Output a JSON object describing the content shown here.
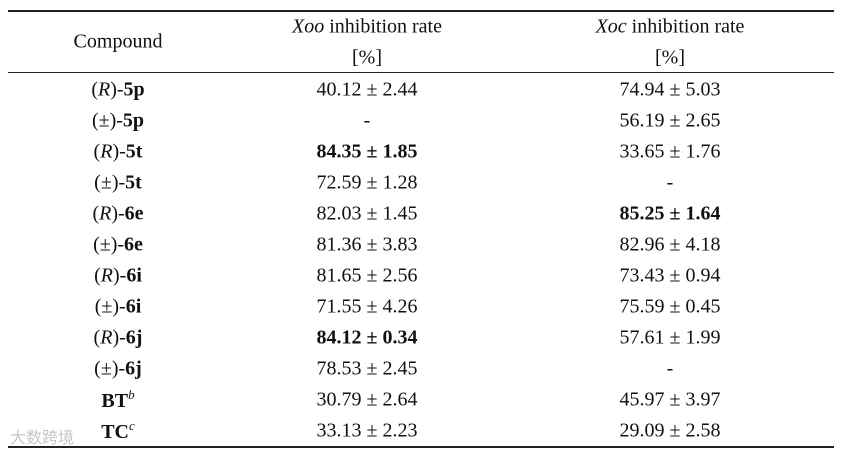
{
  "table": {
    "header": {
      "compound": "Compound",
      "columns": [
        {
          "name": [
            {
              "text": "Xoo",
              "style": "italic"
            },
            {
              "text": " inhibition rate",
              "style": "regular"
            }
          ],
          "unit": "[%]"
        },
        {
          "name": [
            {
              "text": "Xoc",
              "style": "italic"
            },
            {
              "text": " inhibition rate",
              "style": "regular"
            }
          ],
          "unit": "[%]"
        }
      ]
    },
    "rows": [
      {
        "compound": [
          {
            "text": "(",
            "style": "regular"
          },
          {
            "text": "R",
            "style": "italic"
          },
          {
            "text": ")-",
            "style": "regular"
          },
          {
            "text": "5p",
            "style": "bold"
          }
        ],
        "cells": [
          {
            "text": "40.12 ± 2.44",
            "bold": false
          },
          {
            "text": "74.94 ± 5.03",
            "bold": false
          }
        ]
      },
      {
        "compound": [
          {
            "text": "(±)-",
            "style": "regular"
          },
          {
            "text": "5p",
            "style": "bold"
          }
        ],
        "cells": [
          {
            "text": "-",
            "bold": false
          },
          {
            "text": "56.19 ± 2.65",
            "bold": false
          }
        ]
      },
      {
        "compound": [
          {
            "text": "(",
            "style": "regular"
          },
          {
            "text": "R",
            "style": "italic"
          },
          {
            "text": ")-",
            "style": "regular"
          },
          {
            "text": "5t",
            "style": "bold"
          }
        ],
        "cells": [
          {
            "text": "84.35 ± 1.85",
            "bold": true
          },
          {
            "text": "33.65 ± 1.76",
            "bold": false
          }
        ]
      },
      {
        "compound": [
          {
            "text": "(±)-",
            "style": "regular"
          },
          {
            "text": "5t",
            "style": "bold"
          }
        ],
        "cells": [
          {
            "text": "72.59 ± 1.28",
            "bold": false
          },
          {
            "text": "-",
            "bold": false
          }
        ]
      },
      {
        "compound": [
          {
            "text": "(",
            "style": "regular"
          },
          {
            "text": "R",
            "style": "italic"
          },
          {
            "text": ")-",
            "style": "regular"
          },
          {
            "text": "6e",
            "style": "bold"
          }
        ],
        "cells": [
          {
            "text": "82.03 ± 1.45",
            "bold": false
          },
          {
            "text": "85.25 ± 1.64",
            "bold": true
          }
        ]
      },
      {
        "compound": [
          {
            "text": "(±)-",
            "style": "regular"
          },
          {
            "text": "6e",
            "style": "bold"
          }
        ],
        "cells": [
          {
            "text": "81.36 ± 3.83",
            "bold": false
          },
          {
            "text": "82.96 ± 4.18",
            "bold": false
          }
        ]
      },
      {
        "compound": [
          {
            "text": "(",
            "style": "regular"
          },
          {
            "text": "R",
            "style": "italic"
          },
          {
            "text": ")-",
            "style": "regular"
          },
          {
            "text": "6i",
            "style": "bold"
          }
        ],
        "cells": [
          {
            "text": "81.65 ± 2.56",
            "bold": false
          },
          {
            "text": "73.43 ± 0.94",
            "bold": false
          }
        ]
      },
      {
        "compound": [
          {
            "text": "(±)-",
            "style": "regular"
          },
          {
            "text": "6i",
            "style": "bold"
          }
        ],
        "cells": [
          {
            "text": "71.55 ± 4.26",
            "bold": false
          },
          {
            "text": "75.59 ± 0.45",
            "bold": false
          }
        ]
      },
      {
        "compound": [
          {
            "text": "(",
            "style": "regular"
          },
          {
            "text": "R",
            "style": "italic"
          },
          {
            "text": ")-",
            "style": "regular"
          },
          {
            "text": "6j",
            "style": "bold"
          }
        ],
        "cells": [
          {
            "text": "84.12 ± 0.34",
            "bold": true
          },
          {
            "text": "57.61 ± 1.99",
            "bold": false
          }
        ]
      },
      {
        "compound": [
          {
            "text": "(±)-",
            "style": "regular"
          },
          {
            "text": "6j",
            "style": "bold"
          }
        ],
        "cells": [
          {
            "text": "78.53 ± 2.45",
            "bold": false
          },
          {
            "text": "-",
            "bold": false
          }
        ]
      },
      {
        "compound": [
          {
            "text": "BT",
            "style": "bold"
          },
          {
            "text": "b",
            "style": "italic-sup"
          }
        ],
        "cells": [
          {
            "text": "30.79 ± 2.64",
            "bold": false
          },
          {
            "text": "45.97 ± 3.97",
            "bold": false
          }
        ]
      },
      {
        "compound": [
          {
            "text": "TC",
            "style": "bold"
          },
          {
            "text": "c",
            "style": "italic-sup"
          }
        ],
        "cells": [
          {
            "text": "33.13 ± 2.23",
            "bold": false
          },
          {
            "text": "29.09 ± 2.58",
            "bold": false
          }
        ]
      }
    ]
  },
  "watermark": "大数跨境"
}
